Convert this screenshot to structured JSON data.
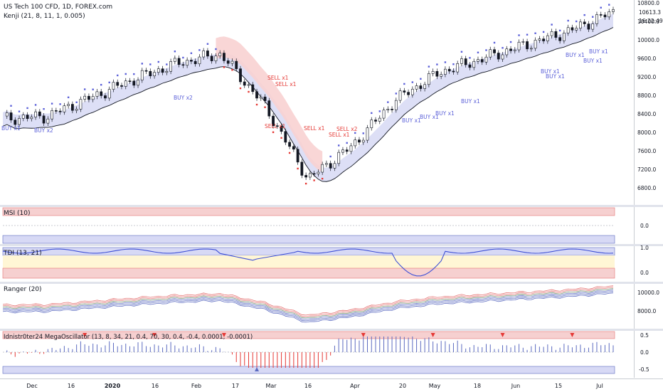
{
  "header": {
    "symbol": "US Tech 100 CFD, 1D, FOREX.com",
    "indicator": "Kenji (21, 8, 11, 1, 0.005)",
    "last_price": "10613.3",
    "timer": "16:22:49"
  },
  "panes": {
    "msi": {
      "title": "MSI (10)",
      "ticks": [
        "0.0"
      ]
    },
    "tdi": {
      "title": "TDI (13, 21)",
      "ticks": [
        "1.0",
        "0.0"
      ]
    },
    "ranger": {
      "title": "Ranger (20)",
      "ticks": [
        "10000.0",
        "8000.0"
      ]
    },
    "mega": {
      "title": "Idnistr0ter24 MegaOscillator (13, 8, 34, 21, 0.4, 70, 30, 0.4, -0.4, 0.0001, -0.0001)",
      "ticks": [
        "0.5",
        "0.0",
        "-0.5"
      ]
    }
  },
  "price_axis": [
    "10800.0",
    "10400.0",
    "10000.0",
    "9600.0",
    "9200.0",
    "8800.0",
    "8400.0",
    "8000.0",
    "7600.0",
    "7200.0",
    "6800.0"
  ],
  "time_axis": [
    "Dec",
    "16",
    "2020",
    "16",
    "Feb",
    "17",
    "Mar",
    "16",
    "Apr",
    "20",
    "May",
    "18",
    "Jun",
    "15",
    "Jul"
  ],
  "signals": {
    "buy": [
      "BUY x1",
      "BUY x2",
      "BUY x2",
      "BUY x1",
      "BUY x1",
      "BUY x1",
      "BUY x1",
      "BUY x1",
      "BUY x1",
      "BUY x1",
      "BUY x1",
      "BUY x1"
    ],
    "sell": [
      "SELL x1",
      "SELL x1",
      "SELL x1",
      "SELL x1",
      "SELL x2",
      "SELL x1"
    ]
  },
  "colors": {
    "buy": "#5a5fd8",
    "sell": "#e53935",
    "band_fill": "#d7d9f5",
    "band_fill_red": "#f8d2d2",
    "msi_band": "#f6d0d0",
    "tdi_band": "#fff6d5",
    "ranger_red": "#e57373",
    "ranger_blue": "#5c6bc0"
  },
  "chart_data": {
    "type": "line",
    "title": "US Tech 100 CFD, 1D, FOREX.com",
    "x": [
      "Dec",
      "16",
      "2020",
      "16",
      "Feb",
      "17",
      "Mar",
      "16",
      "Apr",
      "20",
      "May",
      "18",
      "Jun",
      "15",
      "Jul"
    ],
    "series": [
      {
        "name": "US Tech 100 CFD",
        "values": [
          8300,
          8350,
          8750,
          9150,
          9500,
          9700,
          8600,
          7000,
          7700,
          8700,
          9300,
          9600,
          9900,
          10200,
          10613
        ]
      }
    ],
    "ylim": [
      6500,
      10900
    ]
  }
}
